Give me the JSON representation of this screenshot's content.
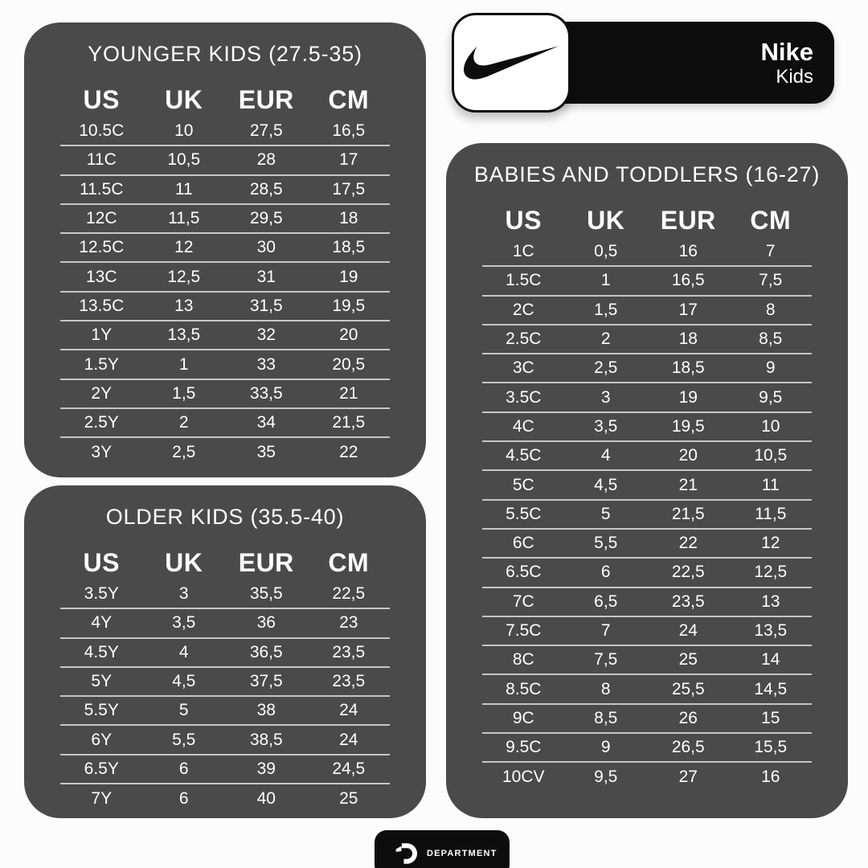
{
  "colors": {
    "page_background": "#fcfcfc",
    "card_background": "#4a4a4a",
    "card_text": "#ffffff",
    "row_divider": "#c6c6c6",
    "badge_black": "#0d0d0d",
    "badge_white": "#ffffff"
  },
  "brand_badge": {
    "brand": "Nike",
    "sub_brand": "Kids",
    "swoosh_icon": "nike-swoosh"
  },
  "footer_badge": {
    "label": "DEPARTMENT",
    "icon": "department-d-logo"
  },
  "chart_data": [
    {
      "type": "table",
      "title": "YOUNGER KIDS (27.5-35)",
      "columns": [
        "US",
        "UK",
        "EUR",
        "CM"
      ],
      "rows": [
        [
          "10.5C",
          "10",
          "27,5",
          "16,5"
        ],
        [
          "11C",
          "10,5",
          "28",
          "17"
        ],
        [
          "11.5C",
          "11",
          "28,5",
          "17,5"
        ],
        [
          "12C",
          "11,5",
          "29,5",
          "18"
        ],
        [
          "12.5C",
          "12",
          "30",
          "18,5"
        ],
        [
          "13C",
          "12,5",
          "31",
          "19"
        ],
        [
          "13.5C",
          "13",
          "31,5",
          "19,5"
        ],
        [
          "1Y",
          "13,5",
          "32",
          "20"
        ],
        [
          "1.5Y",
          "1",
          "33",
          "20,5"
        ],
        [
          "2Y",
          "1,5",
          "33,5",
          "21"
        ],
        [
          "2.5Y",
          "2",
          "34",
          "21,5"
        ],
        [
          "3Y",
          "2,5",
          "35",
          "22"
        ]
      ]
    },
    {
      "type": "table",
      "title": "OLDER KIDS (35.5-40)",
      "columns": [
        "US",
        "UK",
        "EUR",
        "CM"
      ],
      "rows": [
        [
          "3.5Y",
          "3",
          "35,5",
          "22,5"
        ],
        [
          "4Y",
          "3,5",
          "36",
          "23"
        ],
        [
          "4.5Y",
          "4",
          "36,5",
          "23,5"
        ],
        [
          "5Y",
          "4,5",
          "37,5",
          "23,5"
        ],
        [
          "5.5Y",
          "5",
          "38",
          "24"
        ],
        [
          "6Y",
          "5,5",
          "38,5",
          "24"
        ],
        [
          "6.5Y",
          "6",
          "39",
          "24,5"
        ],
        [
          "7Y",
          "6",
          "40",
          "25"
        ]
      ]
    },
    {
      "type": "table",
      "title": "BABIES AND TODDLERS (16-27)",
      "columns": [
        "US",
        "UK",
        "EUR",
        "CM"
      ],
      "rows": [
        [
          "1C",
          "0,5",
          "16",
          "7"
        ],
        [
          "1.5C",
          "1",
          "16,5",
          "7,5"
        ],
        [
          "2C",
          "1,5",
          "17",
          "8"
        ],
        [
          "2.5C",
          "2",
          "18",
          "8,5"
        ],
        [
          "3C",
          "2,5",
          "18,5",
          "9"
        ],
        [
          "3.5C",
          "3",
          "19",
          "9,5"
        ],
        [
          "4C",
          "3,5",
          "19,5",
          "10"
        ],
        [
          "4.5C",
          "4",
          "20",
          "10,5"
        ],
        [
          "5C",
          "4,5",
          "21",
          "11"
        ],
        [
          "5.5C",
          "5",
          "21,5",
          "11,5"
        ],
        [
          "6C",
          "5,5",
          "22",
          "12"
        ],
        [
          "6.5C",
          "6",
          "22,5",
          "12,5"
        ],
        [
          "7C",
          "6,5",
          "23,5",
          "13"
        ],
        [
          "7.5C",
          "7",
          "24",
          "13,5"
        ],
        [
          "8C",
          "7,5",
          "25",
          "14"
        ],
        [
          "8.5C",
          "8",
          "25,5",
          "14,5"
        ],
        [
          "9C",
          "8,5",
          "26",
          "15"
        ],
        [
          "9.5C",
          "9",
          "26,5",
          "15,5"
        ],
        [
          "10CV",
          "9,5",
          "27",
          "16"
        ]
      ]
    }
  ]
}
